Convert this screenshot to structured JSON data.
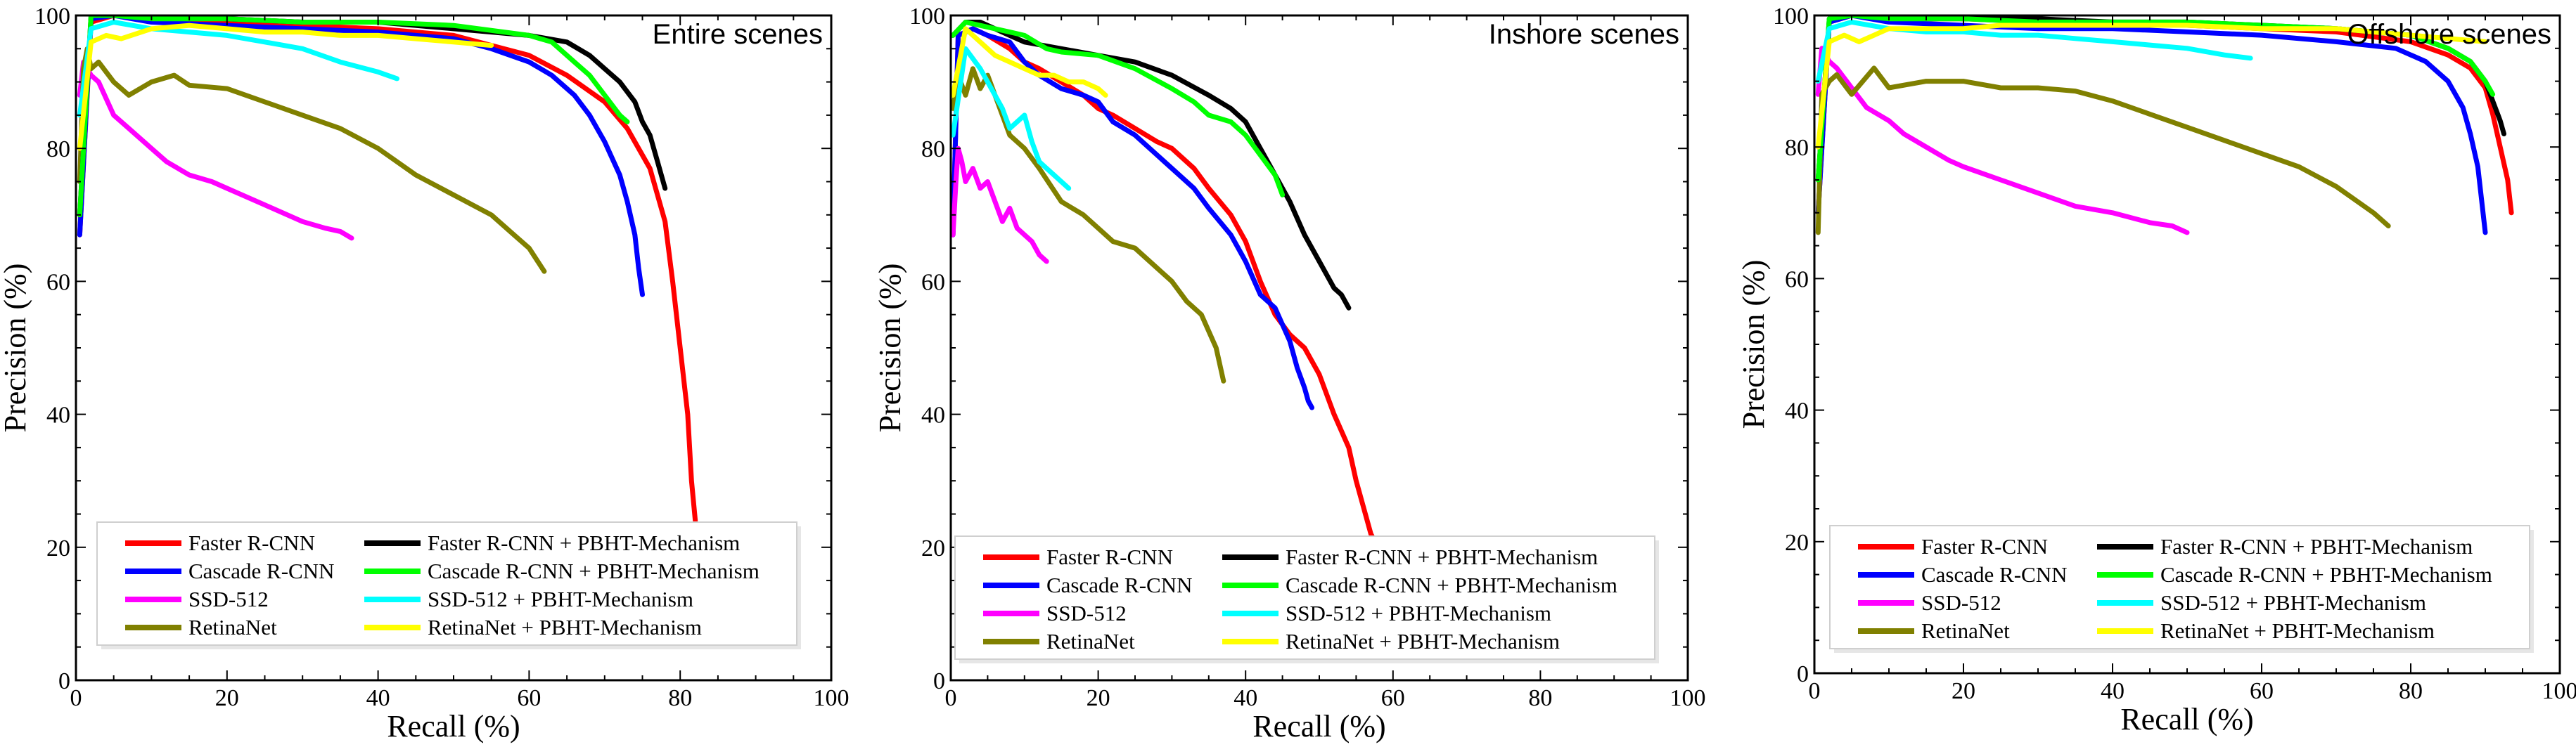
{
  "figure_name": "pr-curves-figure",
  "chart_data": [
    {
      "type": "line",
      "title": "Entire scenes",
      "xlabel": "Recall (%)",
      "ylabel": "Precision (%)",
      "xlim": [
        0,
        100
      ],
      "ylim": [
        0,
        100
      ],
      "xticks": [
        "0",
        "20",
        "40",
        "60",
        "80",
        "100"
      ],
      "yticks": [
        "0",
        "20",
        "40",
        "60",
        "80",
        "100"
      ],
      "legend": "lower-center",
      "series": [
        {
          "name": "Faster R-CNN",
          "color": "#ff0000",
          "x": [
            0.5,
            2,
            5,
            10,
            20,
            30,
            40,
            50,
            55,
            60,
            65,
            70,
            73,
            76,
            78,
            79,
            80,
            81,
            81.5,
            82
          ],
          "y": [
            67,
            99,
            100,
            99.5,
            99,
            98.5,
            98,
            97,
            95.5,
            94,
            91,
            87,
            83,
            77,
            69,
            60,
            50,
            40,
            30,
            24
          ]
        },
        {
          "name": "Cascade R-CNN",
          "color": "#0000ff",
          "x": [
            0.5,
            2,
            5,
            10,
            20,
            30,
            40,
            50,
            55,
            60,
            63,
            66,
            68,
            70,
            72,
            73,
            74,
            74.5,
            75
          ],
          "y": [
            67,
            99.5,
            100,
            99,
            98.5,
            98,
            97.5,
            96.5,
            95,
            93,
            91,
            88,
            85,
            81,
            76,
            72,
            67,
            62,
            58
          ]
        },
        {
          "name": "SSD-512",
          "color": "#ff00ff",
          "x": [
            0.5,
            1,
            2,
            3,
            5,
            7,
            10,
            12,
            15,
            18,
            20,
            22,
            25,
            28,
            30,
            33,
            35,
            36.5
          ],
          "y": [
            88,
            93,
            91,
            90,
            85,
            83,
            80,
            78,
            76,
            75,
            74,
            73,
            71.5,
            70,
            69,
            68,
            67.5,
            66.5
          ]
        },
        {
          "name": "RetinaNet",
          "color": "#808000",
          "x": [
            0.5,
            1,
            1.5,
            2,
            3,
            5,
            7,
            10,
            13,
            15,
            20,
            25,
            30,
            35,
            40,
            45,
            50,
            55,
            58,
            60,
            62
          ],
          "y": [
            75,
            92,
            95,
            92,
            93,
            90,
            88,
            90,
            91,
            89.5,
            89,
            87,
            85,
            83,
            80,
            76,
            73,
            70,
            67,
            65,
            61.5
          ]
        },
        {
          "name": "Faster R-CNN + PBHT-Mechanism",
          "color": "#000000",
          "x": [
            0.5,
            2,
            5,
            10,
            20,
            30,
            40,
            50,
            60,
            65,
            68,
            70,
            72,
            74,
            75,
            76,
            77,
            78
          ],
          "y": [
            70,
            100,
            100,
            100,
            99.5,
            99,
            99,
            98,
            97,
            96,
            94,
            92,
            90,
            87,
            84,
            82,
            78,
            74
          ]
        },
        {
          "name": "Cascade R-CNN + PBHT-Mechanism",
          "color": "#00ff00",
          "x": [
            0.5,
            2,
            5,
            10,
            20,
            30,
            40,
            50,
            60,
            63,
            66,
            68,
            70,
            72,
            73
          ],
          "y": [
            70,
            100,
            100,
            99.5,
            99.5,
            99,
            99,
            98.5,
            97,
            96,
            93,
            91,
            88,
            85,
            84
          ]
        },
        {
          "name": "SSD-512 + PBHT-Mechanism",
          "color": "#00ffff",
          "x": [
            0.5,
            2,
            5,
            10,
            15,
            20,
            25,
            30,
            35,
            40,
            42.5
          ],
          "y": [
            85,
            98,
            99,
            98,
            97.5,
            97,
            96,
            95,
            93,
            91.5,
            90.5
          ]
        },
        {
          "name": "RetinaNet + PBHT-Mechanism",
          "color": "#ffff00",
          "x": [
            0.5,
            2,
            4,
            6,
            10,
            15,
            20,
            25,
            30,
            35,
            40,
            45,
            50,
            55
          ],
          "y": [
            80,
            96,
            97,
            96.5,
            98,
            98.5,
            98,
            97.5,
            97.5,
            97,
            97,
            96.5,
            96,
            95.5
          ]
        }
      ]
    },
    {
      "type": "line",
      "title": "Inshore scenes",
      "xlabel": "Recall (%)",
      "ylabel": "Precision (%)",
      "xlim": [
        0,
        100
      ],
      "ylim": [
        0,
        100
      ],
      "xticks": [
        "0",
        "20",
        "40",
        "60",
        "80",
        "100"
      ],
      "yticks": [
        "0",
        "20",
        "40",
        "60",
        "80",
        "100"
      ],
      "legend": "lower-center",
      "series": [
        {
          "name": "Faster R-CNN",
          "color": "#ff0000",
          "x": [
            0.3,
            1,
            3,
            5,
            8,
            10,
            12,
            15,
            18,
            20,
            22,
            25,
            28,
            30,
            33,
            35,
            38,
            40,
            42,
            44,
            46,
            48,
            50,
            52,
            54,
            55,
            56,
            57,
            58,
            59,
            60
          ],
          "y": [
            67,
            97,
            98,
            97,
            95,
            93,
            92,
            90,
            88,
            86,
            85,
            83,
            81,
            80,
            77,
            74,
            70,
            66,
            60,
            55,
            52,
            50,
            46,
            40,
            35,
            30,
            26,
            22,
            20,
            18,
            16
          ]
        },
        {
          "name": "Cascade R-CNN",
          "color": "#0000ff",
          "x": [
            0.3,
            1,
            3,
            5,
            8,
            10,
            12,
            15,
            18,
            20,
            22,
            25,
            28,
            30,
            33,
            35,
            38,
            40,
            42,
            44,
            46,
            47,
            48,
            48.5,
            49
          ],
          "y": [
            67,
            97,
            98,
            97,
            96,
            93,
            91,
            89,
            88,
            87,
            84,
            82,
            79,
            77,
            74,
            71,
            67,
            63,
            58,
            56,
            51,
            47,
            44,
            42,
            41
          ]
        },
        {
          "name": "SSD-512",
          "color": "#ff00ff",
          "x": [
            0.3,
            0.7,
            1,
            1.5,
            2,
            3,
            4,
            5,
            6,
            7,
            8,
            9,
            10,
            11,
            12,
            13
          ],
          "y": [
            67,
            75,
            80,
            78,
            75,
            77,
            74,
            75,
            72,
            69,
            71,
            68,
            67,
            66,
            64,
            63
          ]
        },
        {
          "name": "RetinaNet",
          "color": "#808000",
          "x": [
            0.3,
            1,
            2,
            3,
            4,
            5,
            6,
            8,
            10,
            12,
            15,
            18,
            20,
            22,
            25,
            28,
            30,
            32,
            34,
            36,
            37
          ],
          "y": [
            86,
            91,
            88,
            92,
            89,
            91,
            88,
            82,
            80,
            77,
            72,
            70,
            68,
            66,
            65,
            62,
            60,
            57,
            55,
            50,
            45
          ]
        },
        {
          "name": "Faster R-CNN + PBHT-Mechanism",
          "color": "#000000",
          "x": [
            0.3,
            2,
            4,
            6,
            8,
            10,
            15,
            20,
            25,
            30,
            35,
            38,
            40,
            42,
            44,
            46,
            48,
            50,
            52,
            53,
            54
          ],
          "y": [
            97,
            99,
            99,
            98,
            97,
            96,
            95,
            94,
            93,
            91,
            88,
            86,
            84,
            80,
            76,
            72,
            67,
            63,
            59,
            58,
            56
          ]
        },
        {
          "name": "Cascade R-CNN + PBHT-Mechanism",
          "color": "#00ff00",
          "x": [
            0.3,
            2,
            4,
            6,
            8,
            10,
            13,
            15,
            20,
            25,
            30,
            33,
            35,
            38,
            40,
            42,
            44,
            45
          ],
          "y": [
            97,
            99,
            98.5,
            98,
            97.5,
            97,
            95,
            94.5,
            94,
            92,
            89,
            87,
            85,
            84,
            82,
            79,
            76,
            73
          ]
        },
        {
          "name": "SSD-512 + PBHT-Mechanism",
          "color": "#00ffff",
          "x": [
            0.3,
            2,
            4,
            5,
            6,
            7,
            8,
            9,
            10,
            11,
            12,
            13,
            14,
            15,
            16
          ],
          "y": [
            82,
            95,
            92,
            90,
            88,
            86,
            83,
            84,
            85,
            81,
            78,
            77,
            76,
            75,
            74
          ]
        },
        {
          "name": "RetinaNet + PBHT-Mechanism",
          "color": "#ffff00",
          "x": [
            0.3,
            2,
            4,
            6,
            8,
            10,
            12,
            14,
            16,
            18,
            20,
            21
          ],
          "y": [
            88,
            98,
            96,
            94,
            93,
            92,
            91,
            91,
            90,
            90,
            89,
            88
          ]
        }
      ]
    },
    {
      "type": "line",
      "title": "Offshore scenes",
      "xlabel": "Recall (%)",
      "ylabel": "Precision (%)",
      "xlim": [
        0,
        100
      ],
      "ylim": [
        0,
        100
      ],
      "xticks": [
        "0",
        "20",
        "40",
        "60",
        "80",
        "100"
      ],
      "yticks": [
        "0",
        "20",
        "40",
        "60",
        "80",
        "100"
      ],
      "legend": "lower-center",
      "series": [
        {
          "name": "Faster R-CNN",
          "color": "#ff0000",
          "x": [
            0.5,
            2,
            5,
            10,
            20,
            30,
            40,
            50,
            60,
            70,
            80,
            85,
            88,
            90,
            91,
            92,
            93,
            93.5
          ],
          "y": [
            70,
            99,
            100,
            99.5,
            99.5,
            99,
            99,
            98.5,
            98,
            97.5,
            96,
            94,
            92,
            89,
            85,
            80,
            75,
            70
          ]
        },
        {
          "name": "Cascade R-CNN",
          "color": "#0000ff",
          "x": [
            0.5,
            2,
            5,
            10,
            20,
            30,
            40,
            50,
            60,
            70,
            78,
            82,
            85,
            87,
            88,
            89,
            89.5,
            90
          ],
          "y": [
            70,
            99,
            100,
            99,
            98.5,
            98,
            98,
            97.5,
            97,
            96,
            95,
            93,
            90,
            86,
            82,
            77,
            72,
            67
          ]
        },
        {
          "name": "SSD-512",
          "color": "#ff00ff",
          "x": [
            0.5,
            1,
            2,
            3,
            5,
            7,
            10,
            12,
            15,
            18,
            20,
            25,
            30,
            35,
            40,
            45,
            48,
            50
          ],
          "y": [
            88,
            95,
            93,
            92,
            89,
            86,
            84,
            82,
            80,
            78,
            77,
            75,
            73,
            71,
            70,
            68.5,
            68,
            67
          ]
        },
        {
          "name": "RetinaNet",
          "color": "#808000",
          "x": [
            0.5,
            1,
            2,
            3,
            5,
            8,
            10,
            15,
            20,
            25,
            30,
            35,
            40,
            45,
            50,
            55,
            60,
            65,
            70,
            75,
            77
          ],
          "y": [
            67,
            88,
            90,
            91,
            88,
            92,
            89,
            90,
            90,
            89,
            89,
            88.5,
            87,
            85,
            83,
            81,
            79,
            77,
            74,
            70,
            68
          ]
        },
        {
          "name": "Faster R-CNN + PBHT-Mechanism",
          "color": "#000000",
          "x": [
            0.5,
            2,
            5,
            10,
            20,
            30,
            40,
            50,
            60,
            70,
            80,
            85,
            88,
            90,
            91,
            92,
            92.5
          ],
          "y": [
            75,
            99.5,
            100,
            100,
            99.5,
            99.5,
            99,
            99,
            98.5,
            98,
            97,
            95,
            93,
            90,
            87,
            84,
            82
          ]
        },
        {
          "name": "Cascade R-CNN + PBHT-Mechanism",
          "color": "#00ff00",
          "x": [
            0.5,
            2,
            5,
            10,
            20,
            30,
            40,
            50,
            60,
            70,
            80,
            85,
            88,
            90,
            91
          ],
          "y": [
            75,
            99.5,
            100,
            99.5,
            99.5,
            99,
            99,
            99,
            98.5,
            98,
            97,
            95,
            93,
            90,
            88
          ]
        },
        {
          "name": "SSD-512 + PBHT-Mechanism",
          "color": "#00ffff",
          "x": [
            0.5,
            2,
            5,
            10,
            15,
            20,
            25,
            30,
            35,
            40,
            45,
            50,
            55,
            58.5
          ],
          "y": [
            90,
            98,
            99,
            98,
            97.5,
            97.5,
            97,
            97,
            96.5,
            96,
            95.5,
            95,
            94,
            93.5
          ]
        },
        {
          "name": "RetinaNet + PBHT-Mechanism",
          "color": "#ffff00",
          "x": [
            0.5,
            2,
            4,
            6,
            10,
            15,
            20,
            25,
            30,
            35,
            40,
            50,
            60,
            70,
            80,
            90
          ],
          "y": [
            80,
            96,
            97,
            96,
            98,
            98,
            98,
            98.5,
            98.5,
            98.5,
            98.5,
            98.5,
            98,
            98,
            97,
            96
          ]
        }
      ]
    }
  ]
}
